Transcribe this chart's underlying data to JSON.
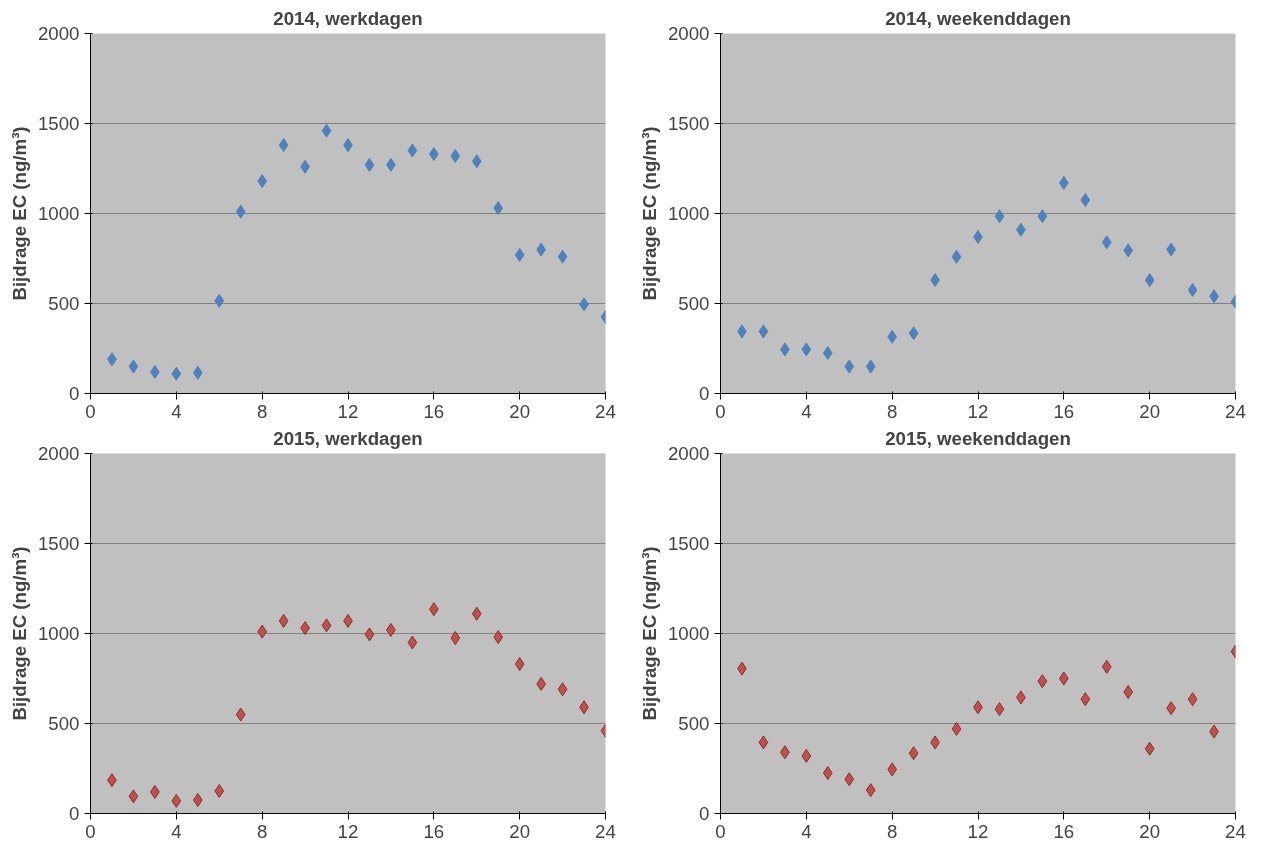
{
  "chart_data": [
    {
      "type": "scatter",
      "title": "2014, werkdagen",
      "ylabel": "Bijdrage EC (ng/m³)",
      "marker": "diamond",
      "grid": "y",
      "xlim": [
        0,
        24
      ],
      "xticks": [
        0,
        4,
        8,
        12,
        16,
        20,
        24
      ],
      "ylim": [
        0,
        2000
      ],
      "yticks": [
        0,
        500,
        1000,
        1500,
        2000
      ],
      "x": [
        1,
        2,
        3,
        4,
        5,
        6,
        7,
        8,
        9,
        10,
        11,
        12,
        13,
        14,
        15,
        16,
        17,
        18,
        19,
        20,
        21,
        22,
        23,
        24
      ],
      "series": [
        {
          "color": "#4f81bd",
          "values": [
            190,
            150,
            120,
            110,
            115,
            515,
            1010,
            1180,
            1380,
            1260,
            1460,
            1380,
            1270,
            1270,
            1350,
            1330,
            1320,
            1290,
            1030,
            770,
            800,
            760,
            495,
            425
          ]
        }
      ]
    },
    {
      "type": "scatter",
      "title": "2014, weekenddagen",
      "ylabel": "Bijdrage EC (ng/m³)",
      "marker": "diamond",
      "grid": "y",
      "xlim": [
        0,
        24
      ],
      "xticks": [
        0,
        4,
        8,
        12,
        16,
        20,
        24
      ],
      "ylim": [
        0,
        2000
      ],
      "yticks": [
        0,
        500,
        1000,
        1500,
        2000
      ],
      "x": [
        1,
        2,
        3,
        4,
        5,
        6,
        7,
        8,
        9,
        10,
        11,
        12,
        13,
        14,
        15,
        16,
        17,
        18,
        19,
        20,
        21,
        22,
        23,
        24
      ],
      "series": [
        {
          "color": "#4f81bd",
          "values": [
            345,
            345,
            245,
            245,
            225,
            150,
            150,
            315,
            335,
            630,
            760,
            870,
            985,
            910,
            985,
            1170,
            1075,
            840,
            795,
            630,
            800,
            575,
            540,
            510
          ]
        }
      ]
    },
    {
      "type": "scatter",
      "title": "2015, werkdagen",
      "ylabel": "Bijdrage EC (ng/m³)",
      "marker": "diamond",
      "grid": "y",
      "xlim": [
        0,
        24
      ],
      "xticks": [
        0,
        4,
        8,
        12,
        16,
        20,
        24
      ],
      "ylim": [
        0,
        2000
      ],
      "yticks": [
        0,
        500,
        1000,
        1500,
        2000
      ],
      "x": [
        1,
        2,
        3,
        4,
        5,
        6,
        7,
        8,
        9,
        10,
        11,
        12,
        13,
        14,
        15,
        16,
        17,
        18,
        19,
        20,
        21,
        22,
        23,
        24
      ],
      "series": [
        {
          "color": "#c0504d",
          "values": [
            185,
            95,
            120,
            70,
            75,
            125,
            550,
            1010,
            1070,
            1030,
            1045,
            1070,
            995,
            1020,
            950,
            1135,
            975,
            1110,
            980,
            830,
            720,
            690,
            590,
            460
          ]
        }
      ]
    },
    {
      "type": "scatter",
      "title": "2015, weekenddagen",
      "ylabel": "Bijdrage EC (ng/m³)",
      "marker": "diamond",
      "grid": "y",
      "xlim": [
        0,
        24
      ],
      "xticks": [
        0,
        4,
        8,
        12,
        16,
        20,
        24
      ],
      "ylim": [
        0,
        2000
      ],
      "yticks": [
        0,
        500,
        1000,
        1500,
        2000
      ],
      "x": [
        1,
        2,
        3,
        4,
        5,
        6,
        7,
        8,
        9,
        10,
        11,
        12,
        13,
        14,
        15,
        16,
        17,
        18,
        19,
        20,
        21,
        22,
        23,
        24
      ],
      "series": [
        {
          "color": "#c0504d",
          "values": [
            805,
            395,
            340,
            320,
            225,
            190,
            130,
            245,
            335,
            395,
            470,
            590,
            580,
            645,
            735,
            750,
            635,
            815,
            675,
            360,
            585,
            635,
            455,
            900
          ]
        }
      ]
    }
  ]
}
